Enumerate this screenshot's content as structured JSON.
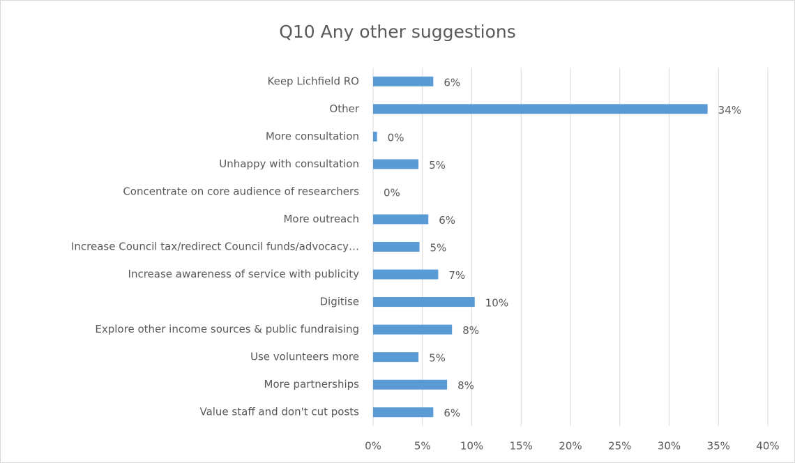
{
  "chart_data": {
    "type": "barh",
    "title": "Q10 Any other suggestions",
    "categories": [
      "Keep Lichfield RO",
      "Other",
      "More consultation",
      "Unhappy with consultation",
      "Concentrate on core audience of researchers",
      "More outreach",
      "Increase Council tax/redirect Council funds/advocacy…",
      "Increase awareness of service with publicity",
      "Digitise",
      "Explore other income sources & public fundraising",
      "Use volunteers more",
      "More partnerships ",
      "Value staff and don't cut posts"
    ],
    "values": [
      6.1,
      33.9,
      0.4,
      4.6,
      0,
      5.6,
      4.7,
      6.6,
      10.3,
      8.0,
      4.6,
      7.5,
      6.1
    ],
    "value_labels": [
      "6%",
      "34%",
      "0%",
      "5%",
      "0%",
      "6%",
      "5%",
      "7%",
      "10%",
      "8%",
      "5%",
      "8%",
      "6%"
    ],
    "color": "#5b9bd5",
    "xlim": [
      0,
      40
    ],
    "xticks": [
      {
        "value": 0,
        "label": "0%"
      },
      {
        "value": 5,
        "label": "5%"
      },
      {
        "value": 10,
        "label": "10%"
      },
      {
        "value": 15,
        "label": "15%"
      },
      {
        "value": 20,
        "label": "20%"
      },
      {
        "value": 25,
        "label": "25%"
      },
      {
        "value": 30,
        "label": "30%"
      },
      {
        "value": 35,
        "label": "35%"
      },
      {
        "value": 40,
        "label": "40%"
      }
    ],
    "grid": true
  }
}
